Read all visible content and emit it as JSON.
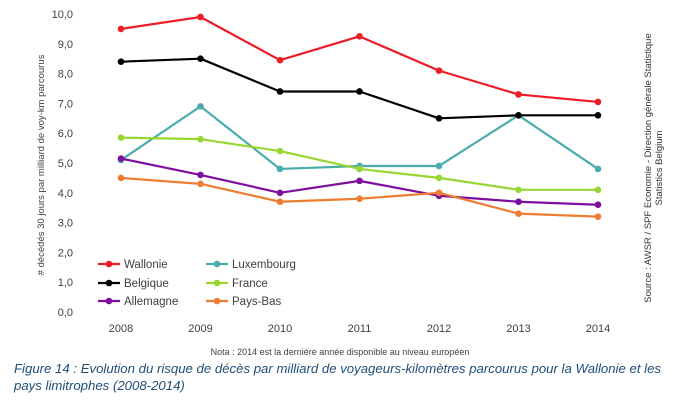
{
  "chart_data": {
    "type": "line",
    "title": "",
    "xlabel": "",
    "ylabel": "# décédés 30 jours par  milliard de voy-km parcourus",
    "x": [
      "2008",
      "2009",
      "2010",
      "2011",
      "2012",
      "2013",
      "2014"
    ],
    "ylim": [
      0,
      10
    ],
    "yticks": [
      "0,0",
      "1,0",
      "2,0",
      "3,0",
      "4,0",
      "5,0",
      "6,0",
      "7,0",
      "8,0",
      "9,0",
      "10,0"
    ],
    "grid": false,
    "legend_position": "bottom-left",
    "series": [
      {
        "name": "Wallonie",
        "color": "#ee1c25",
        "values": [
          9.5,
          9.9,
          8.45,
          9.25,
          8.1,
          7.3,
          7.05
        ]
      },
      {
        "name": "Luxembourg",
        "color": "#4bacac",
        "values": [
          5.1,
          6.9,
          4.8,
          4.9,
          4.9,
          6.6,
          4.8
        ]
      },
      {
        "name": "Belgique",
        "color": "#000000",
        "values": [
          8.4,
          8.5,
          7.4,
          7.4,
          6.5,
          6.6,
          6.6
        ]
      },
      {
        "name": "France",
        "color": "#9ad633",
        "values": [
          5.85,
          5.8,
          5.4,
          4.8,
          4.5,
          4.1,
          4.1
        ]
      },
      {
        "name": "Allemagne",
        "color": "#7e0f9e",
        "values": [
          5.15,
          4.6,
          4.0,
          4.4,
          3.9,
          3.7,
          3.6
        ]
      },
      {
        "name": "Pays-Bas",
        "color": "#ed7d31",
        "values": [
          4.5,
          4.3,
          3.7,
          3.8,
          4.0,
          3.3,
          3.2
        ]
      }
    ],
    "source": "Source : AWSR / SPF Economie - Direction générale Statistique Statistics Belgium",
    "source_line1": "Source : AWSR / SPF Economie - Direction générale Statistique",
    "source_line2": "Statistics Belgium",
    "note": "Nota : 2014 est la dernière année disponible au niveau européen"
  },
  "caption": "Figure 14 : Evolution du risque de décès par milliard de voyageurs-kilomètres parcourus pour la Wallonie et les pays limitrophes (2008-2014)"
}
